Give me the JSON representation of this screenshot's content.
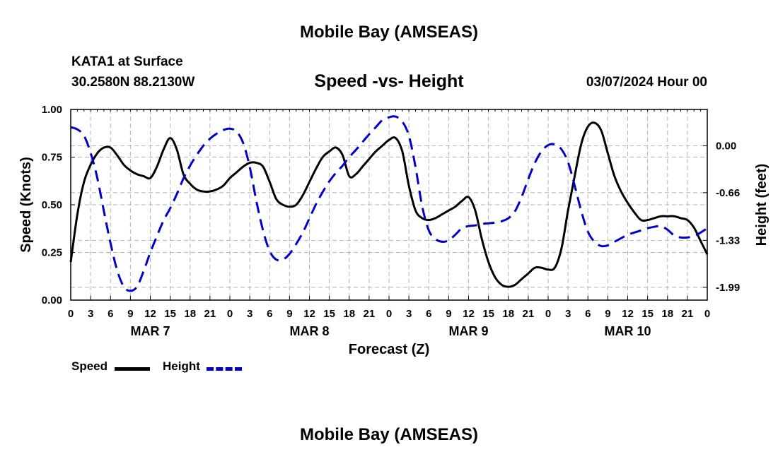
{
  "header": {
    "title": "Mobile Bay (AMSEAS)",
    "station": "KATA1 at Surface",
    "coords": "30.2580N  88.2130W",
    "subtitle": "Speed -vs- Height",
    "datetime": "03/07/2024 Hour 00"
  },
  "footer": {
    "title": "Mobile Bay (AMSEAS)"
  },
  "legend": {
    "speed_label": "Speed",
    "height_label": "Height",
    "speed_color": "#000000",
    "height_color": "#0000cc"
  },
  "chart_data": {
    "type": "line",
    "title": "Speed -vs- Height",
    "xlabel": "Forecast (Z)",
    "ylabel": "Speed (Knots)",
    "y2label": "Height (feet)",
    "x_ticks": [
      "0",
      "3",
      "6",
      "9",
      "12",
      "15",
      "18",
      "21",
      "0",
      "3",
      "6",
      "9",
      "12",
      "15",
      "18",
      "21",
      "0",
      "3",
      "6",
      "9",
      "12",
      "15",
      "18",
      "21",
      "0",
      "3",
      "6",
      "9",
      "12",
      "15",
      "18",
      "21",
      "0"
    ],
    "date_labels": [
      {
        "label": "MAR 7",
        "hour": 12
      },
      {
        "label": "MAR 8",
        "hour": 36
      },
      {
        "label": "MAR 9",
        "hour": 60
      },
      {
        "label": "MAR 10",
        "hour": 84
      }
    ],
    "x_range": [
      0,
      96
    ],
    "ylim": [
      0,
      1.0
    ],
    "y_ticks": [
      "0.00",
      "0.25",
      "0.50",
      "0.75",
      "1.00"
    ],
    "y2lim": [
      -2.17,
      0.51
    ],
    "y2_ticks": [
      "0.00",
      "-0.66",
      "-1.33",
      "-1.99"
    ],
    "grid": true,
    "series": [
      {
        "name": "Speed",
        "axis": "left",
        "style": "solid",
        "color": "#000000",
        "x": [
          0,
          1,
          2,
          3,
          4,
          5,
          6,
          7,
          8,
          9,
          10,
          11,
          12,
          13,
          14,
          15,
          16,
          17,
          18,
          19,
          20,
          21,
          22,
          23,
          24,
          25,
          26,
          27,
          28,
          29,
          30,
          31,
          32,
          33,
          34,
          35,
          36,
          37,
          38,
          39,
          40,
          41,
          42,
          43,
          44,
          45,
          46,
          47,
          48,
          49,
          50,
          51,
          52,
          53,
          54,
          55,
          56,
          57,
          58,
          59,
          60,
          61,
          62,
          63,
          64,
          65,
          66,
          67,
          68,
          69,
          70,
          71,
          72,
          73,
          74,
          75,
          76,
          77,
          78,
          79,
          80,
          81,
          82,
          83,
          84,
          85,
          86,
          87,
          88,
          89,
          90,
          91,
          92,
          93,
          94,
          95,
          96
        ],
        "values": [
          0.2,
          0.45,
          0.62,
          0.71,
          0.77,
          0.8,
          0.8,
          0.76,
          0.71,
          0.68,
          0.66,
          0.65,
          0.64,
          0.7,
          0.79,
          0.85,
          0.79,
          0.66,
          0.61,
          0.58,
          0.57,
          0.57,
          0.58,
          0.6,
          0.64,
          0.67,
          0.7,
          0.72,
          0.72,
          0.7,
          0.62,
          0.53,
          0.5,
          0.49,
          0.5,
          0.55,
          0.62,
          0.69,
          0.75,
          0.78,
          0.8,
          0.76,
          0.65,
          0.66,
          0.7,
          0.74,
          0.78,
          0.81,
          0.84,
          0.85,
          0.78,
          0.6,
          0.47,
          0.43,
          0.42,
          0.43,
          0.45,
          0.47,
          0.49,
          0.52,
          0.54,
          0.47,
          0.32,
          0.2,
          0.12,
          0.08,
          0.07,
          0.08,
          0.11,
          0.14,
          0.17,
          0.17,
          0.16,
          0.17,
          0.27,
          0.47,
          0.65,
          0.82,
          0.91,
          0.93,
          0.89,
          0.77,
          0.65,
          0.57,
          0.51,
          0.46,
          0.42,
          0.42,
          0.43,
          0.44,
          0.44,
          0.44,
          0.43,
          0.42,
          0.38,
          0.31,
          0.24
        ]
      },
      {
        "name": "Height",
        "axis": "right",
        "style": "dashed",
        "color": "#0000cc",
        "x": [
          0,
          1,
          2,
          3,
          4,
          5,
          6,
          7,
          8,
          9,
          10,
          11,
          12,
          13,
          14,
          15,
          16,
          17,
          18,
          19,
          20,
          21,
          22,
          23,
          24,
          25,
          26,
          27,
          28,
          29,
          30,
          31,
          32,
          33,
          34,
          35,
          36,
          37,
          38,
          39,
          40,
          41,
          42,
          43,
          44,
          45,
          46,
          47,
          48,
          49,
          50,
          51,
          52,
          53,
          54,
          55,
          56,
          57,
          58,
          59,
          60,
          61,
          62,
          63,
          64,
          65,
          66,
          67,
          68,
          69,
          70,
          71,
          72,
          73,
          74,
          75,
          76,
          77,
          78,
          79,
          80,
          81,
          82,
          83,
          84,
          85,
          86,
          87,
          88,
          89,
          90,
          91,
          92,
          93,
          94,
          95,
          96
        ],
        "values": [
          0.26,
          0.23,
          0.14,
          -0.1,
          -0.45,
          -0.92,
          -1.37,
          -1.75,
          -1.98,
          -2.04,
          -1.98,
          -1.76,
          -1.5,
          -1.27,
          -1.05,
          -0.88,
          -0.68,
          -0.46,
          -0.28,
          -0.13,
          0.0,
          0.1,
          0.17,
          0.22,
          0.24,
          0.2,
          0.04,
          -0.3,
          -0.78,
          -1.19,
          -1.48,
          -1.6,
          -1.6,
          -1.52,
          -1.38,
          -1.22,
          -1.02,
          -0.82,
          -0.65,
          -0.5,
          -0.38,
          -0.28,
          -0.16,
          -0.06,
          0.05,
          0.16,
          0.26,
          0.36,
          0.4,
          0.41,
          0.34,
          0.14,
          -0.3,
          -0.85,
          -1.19,
          -1.31,
          -1.35,
          -1.33,
          -1.25,
          -1.16,
          -1.13,
          -1.12,
          -1.1,
          -1.09,
          -1.08,
          -1.06,
          -1.02,
          -0.92,
          -0.72,
          -0.47,
          -0.24,
          -0.08,
          0.01,
          0.02,
          -0.05,
          -0.23,
          -0.56,
          -0.92,
          -1.21,
          -1.35,
          -1.41,
          -1.4,
          -1.35,
          -1.3,
          -1.25,
          -1.22,
          -1.19,
          -1.16,
          -1.14,
          -1.13,
          -1.18,
          -1.26,
          -1.29,
          -1.29,
          -1.27,
          -1.22,
          -1.16
        ]
      }
    ]
  }
}
